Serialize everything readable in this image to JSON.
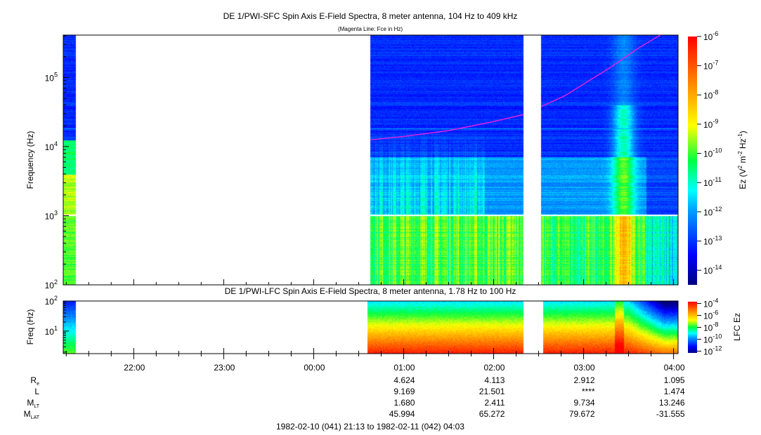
{
  "chart_data": [
    {
      "type": "heatmap",
      "title": "DE 1/PWI-SFC  Spin Axis E-Field Spectra, 8 meter antenna, 104 Hz to 409 kHz",
      "subtitle": "(Magenta Line: Fce in Hz)",
      "ylabel": "Frequency (Hz)",
      "yscale": "log",
      "ylim": [
        100,
        409000
      ],
      "yticks": [
        {
          "v": 100,
          "label": "10",
          "exp": "2"
        },
        {
          "v": 1000,
          "label": "10",
          "exp": "3"
        },
        {
          "v": 10000,
          "label": "10",
          "exp": "4"
        },
        {
          "v": 100000,
          "label": "10",
          "exp": "5"
        }
      ],
      "xlim_hours": [
        21.2167,
        28.05
      ],
      "data_intervals_hours": [
        [
          21.2167,
          21.35
        ],
        [
          24.633,
          26.333
        ],
        [
          26.533,
          28.05
        ]
      ],
      "colorbar": {
        "label_main": "Ez (V",
        "label_sup1": "2",
        "label_mid": " m",
        "label_sup2": "-2",
        "label_end": " Hz",
        "label_sup3": "-1",
        "label_close": ")",
        "range_log10": [
          -14.5,
          -6
        ],
        "ticks": [
          {
            "v": -6,
            "exp": "-6"
          },
          {
            "v": -7,
            "exp": "-7"
          },
          {
            "v": -8,
            "exp": "-8"
          },
          {
            "v": -9,
            "exp": "-9"
          },
          {
            "v": -10,
            "exp": "-10"
          },
          {
            "v": -11,
            "exp": "-11"
          },
          {
            "v": -12,
            "exp": "-12"
          },
          {
            "v": -13,
            "exp": "-13"
          },
          {
            "v": -14,
            "exp": "-14"
          }
        ]
      },
      "fce_line": {
        "color": "#e020e0",
        "points_hours_hz": [
          [
            24.633,
            12500
          ],
          [
            25.0,
            14000
          ],
          [
            25.5,
            17000
          ],
          [
            26.0,
            23000
          ],
          [
            26.333,
            29000
          ],
          [
            26.533,
            38000
          ],
          [
            26.8,
            55000
          ],
          [
            27.0,
            80000
          ],
          [
            27.3,
            140000
          ],
          [
            27.6,
            260000
          ],
          [
            27.85,
            409000
          ]
        ]
      }
    },
    {
      "type": "heatmap",
      "title": "DE 1/PWI-LFC  Spin Axis E-Field Spectra, 8 meter antenna, 1.78 Hz to 100 Hz",
      "ylabel": "Freq (Hz)",
      "yscale": "log",
      "ylim": [
        1.78,
        100
      ],
      "yticks": [
        {
          "v": 10,
          "label": "10",
          "exp": "1"
        },
        {
          "v": 100,
          "label": "10",
          "exp": "2"
        }
      ],
      "data_intervals_hours": [
        [
          21.2167,
          21.35
        ],
        [
          24.6,
          26.333
        ],
        [
          26.55,
          28.05
        ]
      ],
      "colorbar": {
        "label": "LFC Ez",
        "range_log10": [
          -12.3,
          -3.7
        ],
        "ticks": [
          {
            "v": -4,
            "exp": "-4"
          },
          {
            "v": -6,
            "exp": "-6"
          },
          {
            "v": -8,
            "exp": "-8"
          },
          {
            "v": -10,
            "exp": "-10"
          },
          {
            "v": -12,
            "exp": "-12"
          }
        ]
      }
    }
  ],
  "xaxis": {
    "ticks": [
      {
        "h": 22,
        "label": "22:00"
      },
      {
        "h": 23,
        "label": "23:00"
      },
      {
        "h": 24,
        "label": "00:00"
      },
      {
        "h": 25,
        "label": "01:00"
      },
      {
        "h": 26,
        "label": "02:00"
      },
      {
        "h": 27,
        "label": "03:00"
      },
      {
        "h": 28,
        "label": "04:00"
      }
    ],
    "minor_step_hours": 0.25,
    "date_range": "1982-02-10 (041) 21:13 to 1982-02-11 (042) 04:03"
  },
  "ephemeris": {
    "rows": [
      {
        "label": "R",
        "sub": "e",
        "values": [
          "",
          "",
          "",
          "4.624",
          "4.113",
          "2.912",
          "1.095"
        ]
      },
      {
        "label": "L",
        "sub": "",
        "values": [
          "",
          "",
          "",
          "9.169",
          "21.501",
          "****",
          "1.474"
        ]
      },
      {
        "label": "M",
        "sub": "LT",
        "values": [
          "",
          "",
          "",
          "1.680",
          "2.411",
          "9.734",
          "13.246"
        ]
      },
      {
        "label": "M",
        "sub": "LAT",
        "values": [
          "",
          "",
          "",
          "45.994",
          "65.272",
          "79.672",
          "-31.555"
        ]
      }
    ]
  }
}
